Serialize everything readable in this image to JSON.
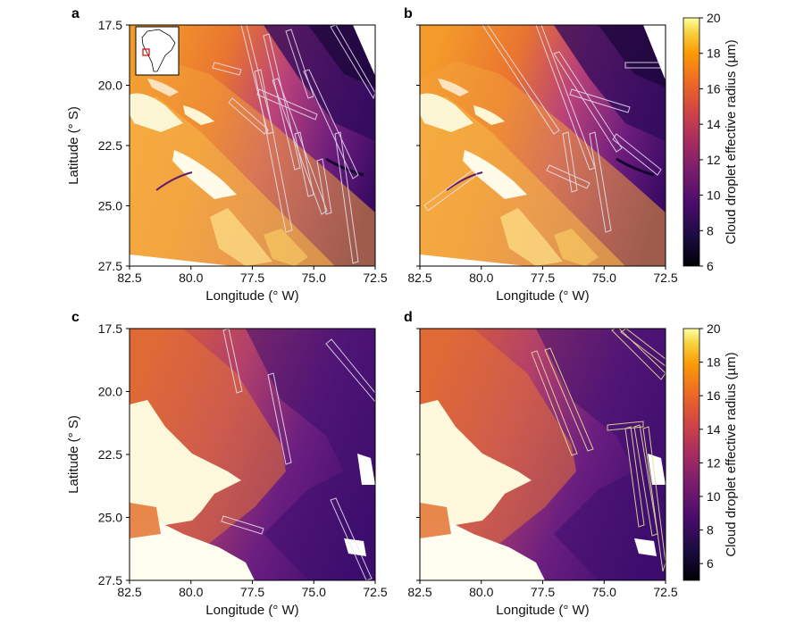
{
  "chart_data": [
    {
      "type": "heatmap",
      "panel": "a",
      "xlabel": "Longitude (° W)",
      "ylabel": "Latitude (° S)",
      "xlim": [
        82.5,
        72.5
      ],
      "ylim": [
        17.5,
        27.5
      ],
      "xticks": [
        "82.5",
        "80.0",
        "77.5",
        "75.0",
        "72.5"
      ],
      "yticks": [
        "17.5",
        "20.0",
        "22.5",
        "25.0",
        "27.5"
      ],
      "variable": "Cloud droplet effective radius (µm)",
      "inset": "South America locator map with red box near 77–80° W, 18–20° S",
      "ship_tracks": "many white outlined polygons oriented NNW–SSE"
    },
    {
      "type": "heatmap",
      "panel": "b",
      "xlabel": "Longitude (° W)",
      "xlim": [
        82.5,
        72.5
      ],
      "ylim": [
        17.5,
        27.5
      ],
      "xticks": [
        "82.5",
        "80.0",
        "77.5",
        "75.0",
        "72.5"
      ],
      "variable": "Cloud droplet effective radius (µm)",
      "ship_tracks": "white outlined polygons, model-predicted"
    },
    {
      "type": "heatmap",
      "panel": "c",
      "xlabel": "Longitude (° W)",
      "ylabel": "Latitude (° S)",
      "xlim": [
        82.5,
        72.5
      ],
      "ylim": [
        17.5,
        27.5
      ],
      "xticks": [
        "82.5",
        "80.0",
        "77.5",
        "75.0",
        "72.5"
      ],
      "yticks": [
        "17.5",
        "20.0",
        "22.5",
        "25.0",
        "27.5"
      ],
      "variable": "Cloud droplet effective radius (µm)"
    },
    {
      "type": "heatmap",
      "panel": "d",
      "xlabel": "Longitude (° W)",
      "xlim": [
        82.5,
        72.5
      ],
      "ylim": [
        17.5,
        27.5
      ],
      "xticks": [
        "82.5",
        "80.0",
        "77.5",
        "75.0",
        "72.5"
      ],
      "variable": "Cloud droplet effective radius (µm)"
    }
  ],
  "colorbars": [
    {
      "label": "Cloud droplet effective radius (µm)",
      "range": [
        6,
        20
      ],
      "ticks": [
        "20",
        "18",
        "16",
        "14",
        "12",
        "10",
        "8",
        "6"
      ]
    },
    {
      "label": "Cloud droplet effective radius (µm)",
      "range": [
        5,
        20
      ],
      "ticks": [
        "20",
        "18",
        "16",
        "14",
        "12",
        "10",
        "8",
        "6"
      ]
    }
  ],
  "colormap": [
    "#000004",
    "#2a0b55",
    "#57106e",
    "#832681",
    "#b5367a",
    "#e45a31",
    "#f98e09",
    "#fbbe23",
    "#fcffa4"
  ]
}
